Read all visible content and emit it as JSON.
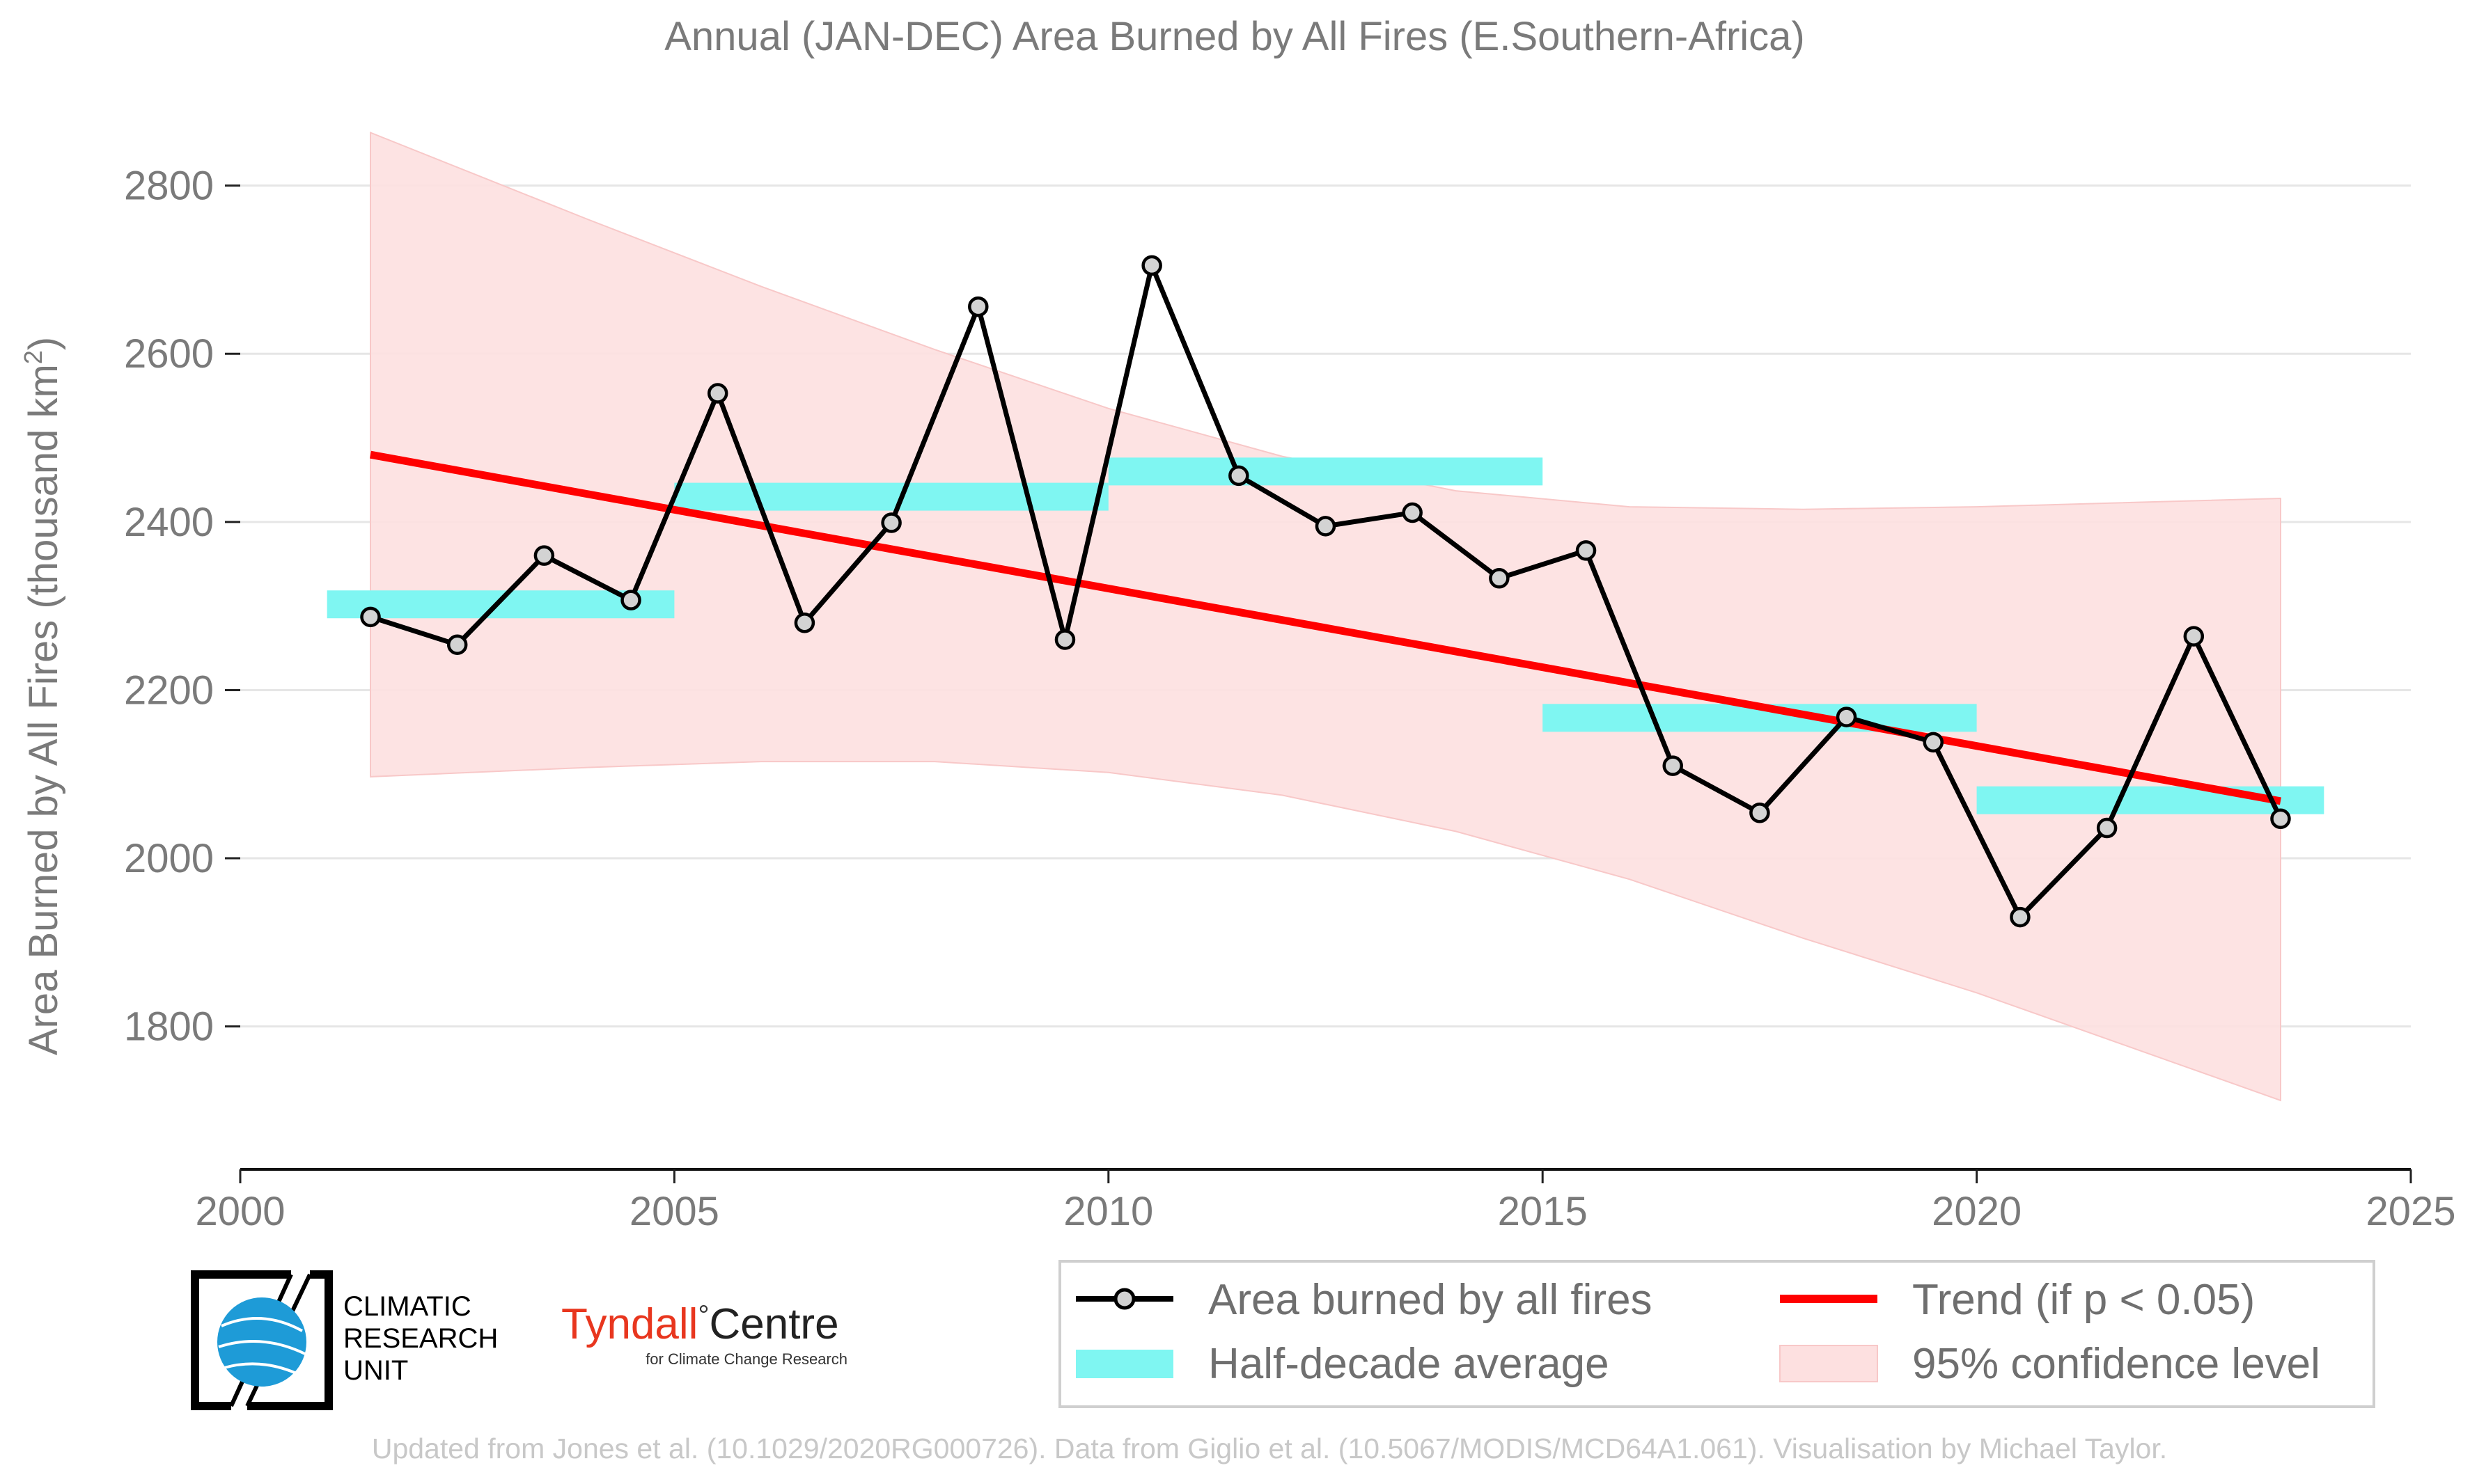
{
  "chart_data": {
    "type": "line",
    "title": "Annual (JAN-DEC) Area Burned by All Fires (E.Southern-Africa)",
    "ylabel": "Area Burned by All Fires (thousand km",
    "ylabel_sup": "2",
    "ylabel_end": ")",
    "xlim": [
      2000,
      2025
    ],
    "ylim": [
      1630,
      2880
    ],
    "x_ticks": [
      2000,
      2005,
      2010,
      2015,
      2020,
      2025
    ],
    "y_ticks": [
      1800,
      2000,
      2200,
      2400,
      2600,
      2800
    ],
    "grid": "horizontal",
    "series": [
      {
        "name": "Area burned by all fires",
        "color": "#000000",
        "marker_fill": "#d3d3d3",
        "x": [
          2001.5,
          2002.5,
          2003.5,
          2004.5,
          2005.5,
          2006.5,
          2007.5,
          2008.5,
          2009.5,
          2010.5,
          2011.5,
          2012.5,
          2013.5,
          2014.5,
          2015.5,
          2016.5,
          2017.5,
          2018.5,
          2019.5,
          2020.5,
          2021.5,
          2022.5,
          2023.5
        ],
        "values": [
          2287,
          2254,
          2360,
          2307,
          2553,
          2280,
          2399,
          2656,
          2260,
          2705,
          2455,
          2395,
          2411,
          2333,
          2366,
          2110,
          2054,
          2168,
          2138,
          1930,
          2036,
          2264,
          2047
        ]
      }
    ],
    "half_decade_average": {
      "name": "Half-decade average",
      "color": "#7ff6f2",
      "segments": [
        {
          "x0": 2001,
          "x1": 2005,
          "value": 2302
        },
        {
          "x0": 2005,
          "x1": 2010,
          "value": 2430
        },
        {
          "x0": 2010,
          "x1": 2015,
          "value": 2460
        },
        {
          "x0": 2015,
          "x1": 2020,
          "value": 2167
        },
        {
          "x0": 2020,
          "x1": 2024,
          "value": 2069
        }
      ]
    },
    "trend": {
      "name": "Trend (if p < 0.05)",
      "color": "#ff0000",
      "x": [
        2001.5,
        2023.5
      ],
      "values": [
        2480,
        2068
      ]
    },
    "confidence_band": {
      "name": "95% confidence level",
      "color": "#fde0e0",
      "x": [
        2001.5,
        2004,
        2006,
        2008,
        2010,
        2012,
        2014,
        2016,
        2018,
        2020,
        2023.5
      ],
      "upper": [
        2863,
        2760,
        2680,
        2605,
        2535,
        2478,
        2437,
        2418,
        2415,
        2418,
        2428
      ],
      "lower": [
        2097,
        2108,
        2115,
        2115,
        2102,
        2075,
        2032,
        1975,
        1905,
        1840,
        1712
      ]
    },
    "legend_position": "bottom-right"
  },
  "legend": {
    "items": [
      "Area burned by all fires",
      "Trend (if p < 0.05)",
      "Half-decade average",
      "95% confidence level"
    ]
  },
  "logos": {
    "cru_lines": [
      "CLIMATIC",
      "RESEARCH",
      "UNIT"
    ],
    "tyndall_main": "Tyndall",
    "tyndall_degree": "°",
    "tyndall_centre": "Centre",
    "tyndall_sub": "for Climate Change Research"
  },
  "footer": "Updated from Jones et al. (10.1029/2020RG000726). Data from Giglio et al. (10.5067/MODIS/MCD64A1.061). Visualisation by Michael Taylor."
}
